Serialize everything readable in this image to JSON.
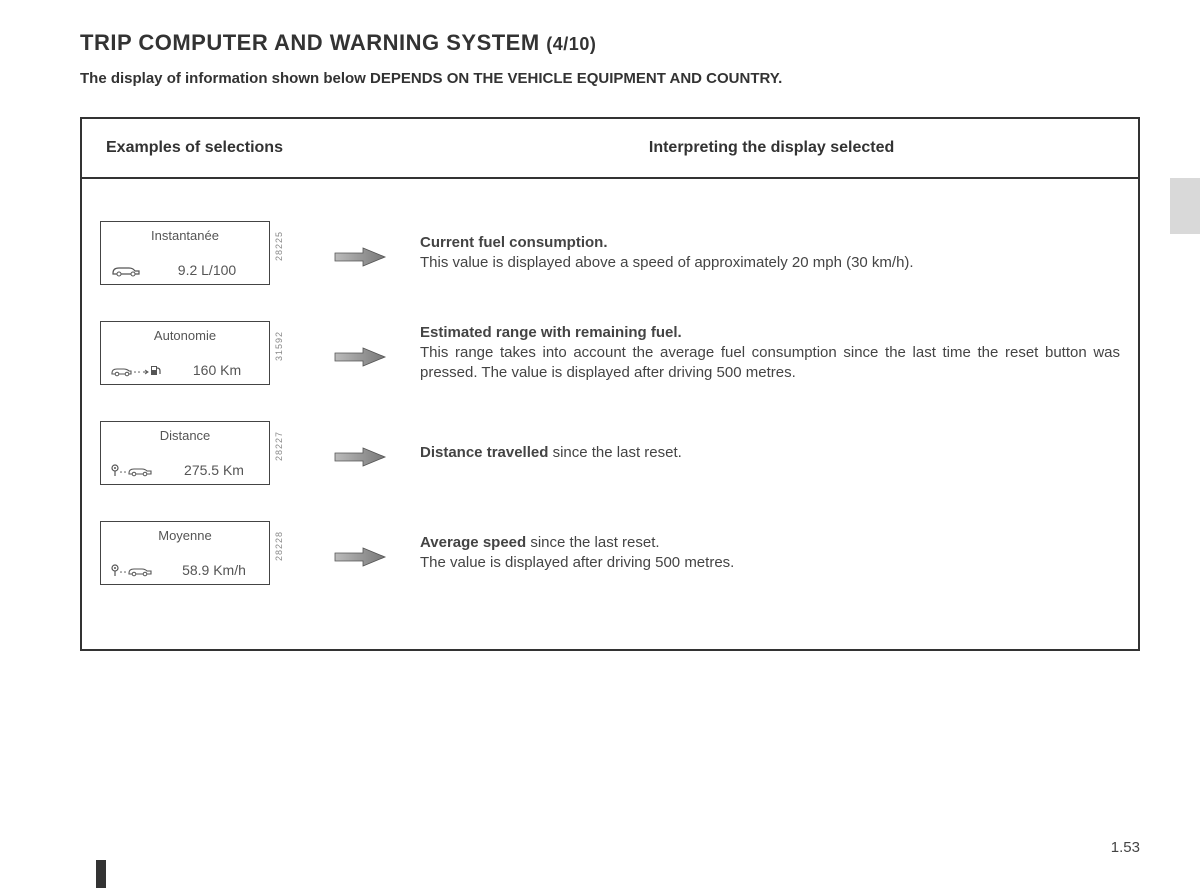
{
  "title_main": "TRIP COMPUTER AND WARNING SYSTEM ",
  "title_page": "(4/10)",
  "subtitle": "The display of information shown below DEPENDS ON THE VEHICLE EQUIPMENT AND COUNTRY.",
  "header_left": "Examples of selections",
  "header_right": "Interpreting the display selected",
  "rows": [
    {
      "label": "Instantanée",
      "value": "9.2 L/100",
      "ref": "28225",
      "icon": "car",
      "desc_bold": "Current fuel consumption.",
      "desc_rest": "This value is displayed above a speed of approximately 20 mph (30 km/h)."
    },
    {
      "label": "Autonomie",
      "value": "160 Km",
      "ref": "31592",
      "icon": "car-pump",
      "desc_bold": "Estimated range with remaining fuel.",
      "desc_rest": "This range takes into account the average fuel consumption since the last time the reset button was pressed. The value is displayed after driving 500 metres."
    },
    {
      "label": "Distance",
      "value": "275.5 Km",
      "ref": "28227",
      "icon": "pin-car",
      "desc_bold": "Distance travelled",
      "desc_rest": " since the last reset."
    },
    {
      "label": "Moyenne",
      "value": "58.9 Km/h",
      "ref": "28228",
      "icon": "pin-car",
      "desc_bold": "Average speed",
      "desc_rest": " since the last reset.\nThe value is displayed after driving 500 metres."
    }
  ],
  "page_number": "1.53"
}
